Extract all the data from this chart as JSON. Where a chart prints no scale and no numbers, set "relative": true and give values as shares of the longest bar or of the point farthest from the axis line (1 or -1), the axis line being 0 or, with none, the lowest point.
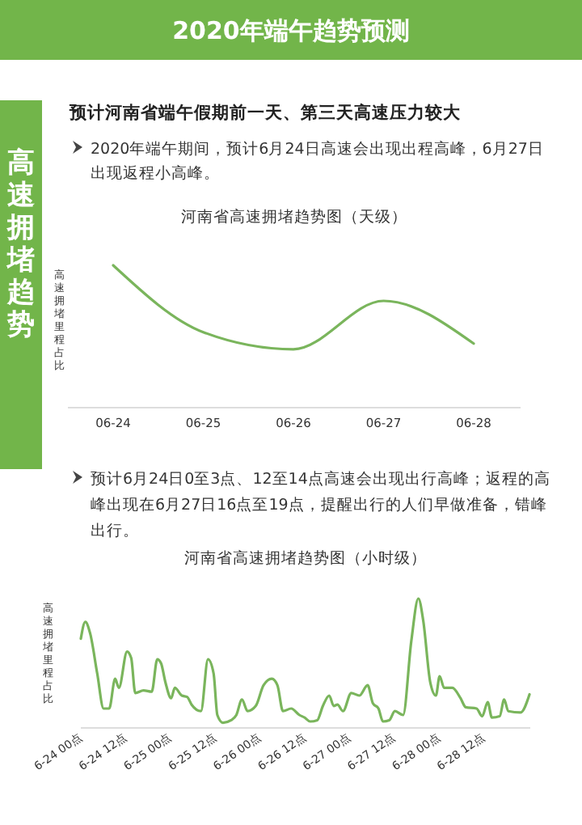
{
  "chart_data": [
    {
      "type": "line",
      "title": "河南省高速拥堵趋势图（天级）",
      "ylabel": "高速拥堵里程占比",
      "relative": true,
      "categories": [
        "06-24",
        "06-25",
        "06-26",
        "06-27",
        "06-28"
      ],
      "series": [
        {
          "color": "#7ab55c",
          "values": [
            1,
            0.53,
            0.41,
            0.75,
            0.45
          ]
        }
      ],
      "annotations": [
        "2020年端午趋势预测",
        "高速拥堵趋势",
        "预计河南省端午假期前一天、第三天高速压力较大",
        "2020年端午期间，预计6月24日高速会出现出程高峰，6月27日出现返程小高峰。"
      ]
    },
    {
      "type": "line",
      "title": "河南省高速拥堵趋势图（小时级）",
      "ylabel": "高速拥堵里程占比",
      "relative": true,
      "xlim": [
        "2020-06-24T00:00",
        "2020-06-29T00:30"
      ],
      "xticks": [
        {
          "value": "2020-06-24T00:00",
          "label": "6-24 00点"
        },
        {
          "value": "2020-06-24T12:00",
          "label": "6-24 12点"
        },
        {
          "value": "2020-06-25T00:00",
          "label": "6-25 00点"
        },
        {
          "value": "2020-06-25T12:00",
          "label": "6-25 12点"
        },
        {
          "value": "2020-06-26T00:00",
          "label": "6-26 00点"
        },
        {
          "value": "2020-06-26T12:00",
          "label": "6-26 12点"
        },
        {
          "value": "2020-06-27T00:00",
          "label": "6-27 00点"
        },
        {
          "value": "2020-06-27T12:00",
          "label": "6-27 12点"
        },
        {
          "value": "2020-06-28T00:00",
          "label": "6-28 00点"
        },
        {
          "value": "2020-06-28T12:00",
          "label": "6-28 12点"
        }
      ],
      "series": [
        {
          "color": "#7ab55c",
          "x": [
            "2020-06-24T00:00",
            "2020-06-24T01:12",
            "2020-06-24T02:30",
            "2020-06-24T04:24",
            "2020-06-24T06:06",
            "2020-06-24T07:36",
            "2020-06-24T09:12",
            "2020-06-24T10:12",
            "2020-06-24T12:24",
            "2020-06-24T13:30",
            "2020-06-24T14:36",
            "2020-06-24T16:48",
            "2020-06-24T19:00",
            "2020-06-24T20:30",
            "2020-06-24T21:30",
            "2020-06-24T22:42",
            "2020-06-25T00:12",
            "2020-06-25T01:12",
            "2020-06-25T03:06",
            "2020-06-25T04:30",
            "2020-06-25T05:42",
            "2020-06-25T08:12",
            "2020-06-25T10:06",
            "2020-06-25T11:36",
            "2020-06-25T12:36",
            "2020-06-25T14:06",
            "2020-06-25T16:18",
            "2020-06-25T17:42",
            "2020-06-25T19:12",
            "2020-06-25T20:42",
            "2020-06-25T22:54",
            "2020-06-26T01:00",
            "2020-06-26T03:12",
            "2020-06-26T04:42",
            "2020-06-26T06:12",
            "2020-06-26T08:24",
            "2020-06-26T10:36",
            "2020-06-26T12:00",
            "2020-06-26T13:30",
            "2020-06-26T15:24",
            "2020-06-26T16:54",
            "2020-06-26T18:36",
            "2020-06-26T19:48",
            "2020-06-26T20:48",
            "2020-06-26T22:18",
            "2020-06-27T00:30",
            "2020-06-27T02:42",
            "2020-06-27T04:54",
            "2020-06-27T06:18",
            "2020-06-27T07:48",
            "2020-06-27T09:00",
            "2020-06-27T10:42",
            "2020-06-27T12:12",
            "2020-06-27T14:24",
            "2020-06-27T16:36",
            "2020-06-27T18:30",
            "2020-06-27T19:48",
            "2020-06-27T21:42",
            "2020-06-27T23:12",
            "2020-06-28T00:12",
            "2020-06-28T01:24",
            "2020-06-28T03:36",
            "2020-06-28T05:48",
            "2020-06-28T07:12",
            "2020-06-28T10:06",
            "2020-06-28T11:36",
            "2020-06-28T13:06",
            "2020-06-28T14:12",
            "2020-06-28T16:18",
            "2020-06-28T17:30",
            "2020-06-28T18:36",
            "2020-06-28T21:54",
            "2020-06-29T00:18"
          ],
          "values": [
            0.69,
            0.82,
            0.73,
            0.42,
            0.15,
            0.15,
            0.38,
            0.31,
            0.59,
            0.54,
            0.27,
            0.29,
            0.28,
            0.53,
            0.5,
            0.35,
            0.23,
            0.31,
            0.25,
            0.24,
            0.18,
            0.13,
            0.53,
            0.42,
            0.1,
            0.04,
            0.06,
            0.1,
            0.22,
            0.13,
            0.17,
            0.33,
            0.38,
            0.33,
            0.13,
            0.15,
            0.1,
            0.08,
            0.05,
            0.06,
            0.17,
            0.25,
            0.17,
            0.18,
            0.13,
            0.27,
            0.25,
            0.33,
            0.19,
            0.15,
            0.05,
            0.06,
            0.13,
            0.1,
            0.67,
            1,
            0.83,
            0.35,
            0.25,
            0.4,
            0.31,
            0.31,
            0.23,
            0.16,
            0.15,
            0.09,
            0.2,
            0.08,
            0.09,
            0.22,
            0.13,
            0.12,
            0.26
          ]
        }
      ],
      "annotations": [
        "预计6月24日0至3点、12至14点高速会出现出行高峰；返程的高峰出现在6月27日16点至19点，提醒出行的人们早做准备，错峰出行。"
      ]
    }
  ]
}
